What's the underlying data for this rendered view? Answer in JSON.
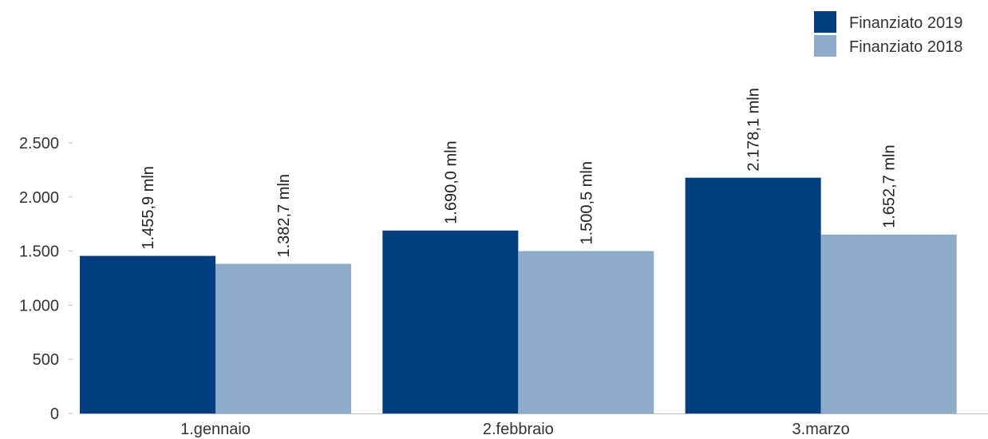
{
  "chart_data": {
    "type": "bar",
    "categories": [
      "1.gennaio",
      "2.febbraio",
      "3.marzo"
    ],
    "series": [
      {
        "name": "Finanziato 2019",
        "values": [
          1455.9,
          1690.0,
          2178.1
        ],
        "labels": [
          "1.455,9 mln",
          "1.690,0 mln",
          "2.178,1 mln"
        ],
        "color": "#003f7f"
      },
      {
        "name": "Finanziato 2018",
        "values": [
          1382.7,
          1500.5,
          1652.7
        ],
        "labels": [
          "1.382,7 mln",
          "1.500,5 mln",
          "1.652,7 mln"
        ],
        "color": "#8eabca"
      }
    ],
    "yticks": [
      0,
      500,
      1000,
      1500,
      2000,
      2500
    ],
    "ytick_labels": [
      "0",
      "500",
      "1.000",
      "1.500",
      "2.000",
      "2.500"
    ],
    "ylim": [
      0,
      2500
    ],
    "grid": false,
    "legend": "top-right",
    "title": "",
    "xlabel": "",
    "ylabel": ""
  }
}
